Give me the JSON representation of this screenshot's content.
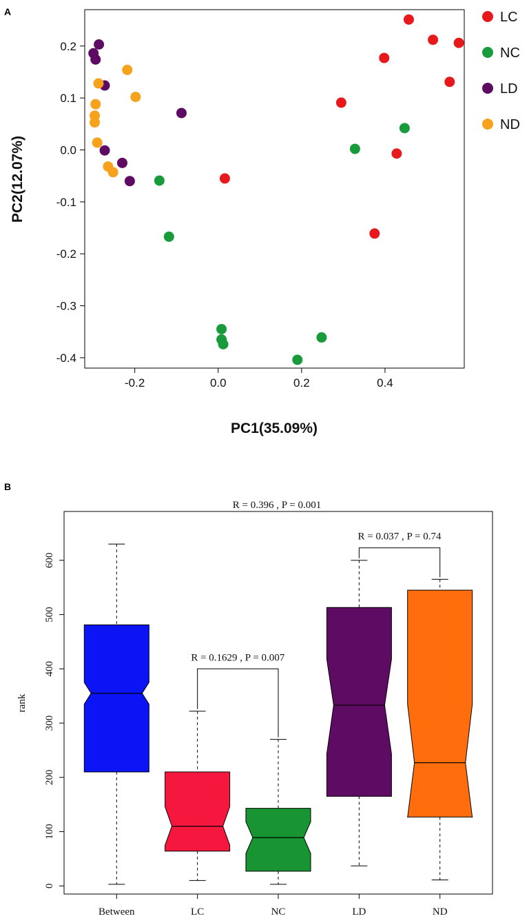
{
  "chart_data": [
    {
      "panel": "A",
      "type": "scatter",
      "title": "",
      "xlabel": "PC1(35.09%)",
      "ylabel": "PC2(12.07%)",
      "xlim": [
        -0.32,
        0.59
      ],
      "ylim": [
        -0.42,
        0.27
      ],
      "xticks": [
        -0.2,
        0.0,
        0.2,
        0.4
      ],
      "xtick_labels": [
        "-0.2",
        "0.0",
        "0.2",
        "0.4"
      ],
      "yticks": [
        0.2,
        0.1,
        0.0,
        -0.1,
        -0.2,
        -0.3,
        -0.4
      ],
      "ytick_labels": [
        "0.2",
        "0.1",
        "0.0",
        "-0.1",
        "-0.2",
        "-0.3",
        "-0.4"
      ],
      "legend_position": "right",
      "series": [
        {
          "name": "LC",
          "color": "#e8191c",
          "points": [
            [
              0.457,
              0.251
            ],
            [
              0.515,
              0.212
            ],
            [
              0.577,
              0.206
            ],
            [
              0.398,
              0.177
            ],
            [
              0.555,
              0.131
            ],
            [
              0.295,
              0.091
            ],
            [
              0.428,
              -0.007
            ],
            [
              0.016,
              -0.055
            ],
            [
              0.375,
              -0.161
            ]
          ]
        },
        {
          "name": "NC",
          "color": "#199a3b",
          "points": [
            [
              0.447,
              0.042
            ],
            [
              0.328,
              0.002
            ],
            [
              -0.141,
              -0.059
            ],
            [
              -0.118,
              -0.167
            ],
            [
              0.008,
              -0.345
            ],
            [
              0.008,
              -0.365
            ],
            [
              0.012,
              -0.374
            ],
            [
              0.248,
              -0.361
            ],
            [
              0.19,
              -0.404
            ]
          ]
        },
        {
          "name": "LD",
          "color": "#5e0b63",
          "points": [
            [
              -0.286,
              0.203
            ],
            [
              -0.299,
              0.186
            ],
            [
              -0.294,
              0.174
            ],
            [
              -0.272,
              0.124
            ],
            [
              -0.088,
              0.071
            ],
            [
              -0.272,
              -0.001
            ],
            [
              -0.23,
              -0.025
            ],
            [
              -0.212,
              -0.06
            ]
          ]
        },
        {
          "name": "ND",
          "color": "#f6a21c",
          "points": [
            [
              -0.218,
              0.154
            ],
            [
              -0.287,
              0.128
            ],
            [
              -0.198,
              0.102
            ],
            [
              -0.294,
              0.088
            ],
            [
              -0.296,
              0.066
            ],
            [
              -0.296,
              0.053
            ],
            [
              -0.29,
              0.014
            ],
            [
              -0.264,
              -0.032
            ],
            [
              -0.252,
              -0.043
            ]
          ]
        }
      ]
    },
    {
      "panel": "B",
      "type": "box",
      "title": "R =  0.396 , P = 0.001",
      "xlabel": "",
      "ylabel": "rank",
      "ylim": [
        -15,
        690
      ],
      "yticks": [
        0,
        100,
        200,
        300,
        400,
        500,
        600
      ],
      "ytick_labels": [
        "0",
        "100",
        "200",
        "300",
        "400",
        "500",
        "600"
      ],
      "categories": [
        "Between",
        "LC",
        "NC",
        "LD",
        "ND"
      ],
      "boxes": [
        {
          "name": "Between",
          "color": "#0a14f5",
          "min": 3,
          "q1": 210,
          "notch_low": 335,
          "median": 355,
          "notch_high": 375,
          "q3": 481,
          "max": 630
        },
        {
          "name": "LC",
          "color": "#f6173f",
          "min": 10,
          "q1": 64,
          "notch_low": 75,
          "median": 110,
          "notch_high": 146,
          "q3": 210,
          "max": 322
        },
        {
          "name": "NC",
          "color": "#199433",
          "min": 3,
          "q1": 27,
          "notch_low": 60,
          "median": 89,
          "notch_high": 118,
          "q3": 143,
          "max": 270
        },
        {
          "name": "LD",
          "color": "#5e0b63",
          "min": 37,
          "q1": 165,
          "notch_low": 243,
          "median": 333,
          "notch_high": 418,
          "q3": 513,
          "max": 600
        },
        {
          "name": "ND",
          "color": "#ff6d0d",
          "min": 11,
          "q1": 127,
          "notch_low": 126,
          "median": 227,
          "notch_high": 335,
          "q3": 545,
          "max": 565
        }
      ],
      "comparisons": [
        {
          "groups": [
            "LC",
            "NC"
          ],
          "label": "R =  0.1629 , P = 0.007",
          "bracket_rank": 400
        },
        {
          "groups": [
            "LD",
            "ND"
          ],
          "label": "R =  0.037 , P = 0.74",
          "bracket_rank": 623
        }
      ]
    }
  ]
}
